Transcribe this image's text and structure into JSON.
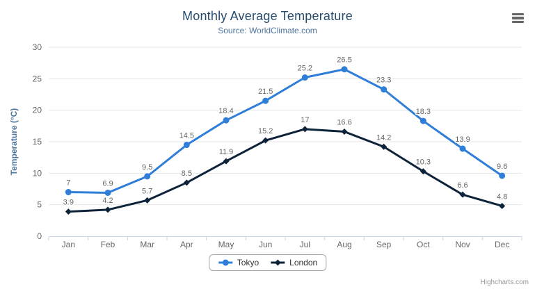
{
  "title": "Monthly Average Temperature",
  "subtitle": "Source: WorldClimate.com",
  "credits": "Highcharts.com",
  "menu_icon": "hamburger-export-menu",
  "colors": {
    "tokyo_series": "#2f7ed8",
    "london_series": "#0d233a",
    "title_text": "#274b6d",
    "subtitle_text": "#4d759e",
    "axis_label": "#666666",
    "data_label": "#666666",
    "gridline": "#e6e6e6",
    "axis_line": "#ccd6eb",
    "legend_text": "#333333",
    "legend_border": "#a8a8a8",
    "credits_text": "#999999",
    "menu_icon_bars": "#666666"
  },
  "chart_data": {
    "type": "line",
    "title": "Monthly Average Temperature",
    "subtitle": "Source: WorldClimate.com",
    "categories": [
      "Jan",
      "Feb",
      "Mar",
      "Apr",
      "May",
      "Jun",
      "Jul",
      "Aug",
      "Sep",
      "Oct",
      "Nov",
      "Dec"
    ],
    "series": [
      {
        "name": "Tokyo",
        "color": "#2f7ed8",
        "marker": "circle",
        "values": [
          7,
          6.9,
          9.5,
          14.5,
          18.4,
          21.5,
          25.2,
          26.5,
          23.3,
          18.3,
          13.9,
          9.6
        ]
      },
      {
        "name": "London",
        "color": "#0d233a",
        "marker": "diamond",
        "values": [
          3.9,
          4.2,
          5.7,
          8.5,
          11.9,
          15.2,
          17,
          16.6,
          14.2,
          10.3,
          6.6,
          4.8
        ]
      }
    ],
    "xlabel": "",
    "ylabel": "Temperature (°C)",
    "ylim": [
      0,
      30
    ],
    "ytick_step": 5,
    "yticks": [
      0,
      5,
      10,
      15,
      20,
      25,
      30
    ],
    "grid": true,
    "data_labels": true,
    "legend_position": "bottom"
  }
}
